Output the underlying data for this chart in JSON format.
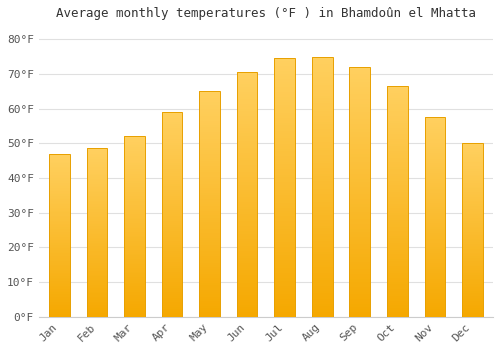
{
  "title": "Average monthly temperatures (°F ) in Bhamdoûn el Mhatta",
  "months": [
    "Jan",
    "Feb",
    "Mar",
    "Apr",
    "May",
    "Jun",
    "Jul",
    "Aug",
    "Sep",
    "Oct",
    "Nov",
    "Dec"
  ],
  "values": [
    47.0,
    48.5,
    52.0,
    59.0,
    65.0,
    70.5,
    74.5,
    75.0,
    72.0,
    66.5,
    57.5,
    50.0
  ],
  "bar_color_light": "#FFD060",
  "bar_color_dark": "#F5A800",
  "bar_edge_color": "#E8A000",
  "background_color": "#ffffff",
  "plot_bg_color": "#ffffff",
  "grid_color": "#e0e0e0",
  "ytick_labels": [
    "0°F",
    "10°F",
    "20°F",
    "30°F",
    "40°F",
    "50°F",
    "60°F",
    "70°F",
    "80°F"
  ],
  "ytick_values": [
    0,
    10,
    20,
    30,
    40,
    50,
    60,
    70,
    80
  ],
  "ylim": [
    0,
    84
  ],
  "title_fontsize": 9,
  "tick_fontsize": 8
}
